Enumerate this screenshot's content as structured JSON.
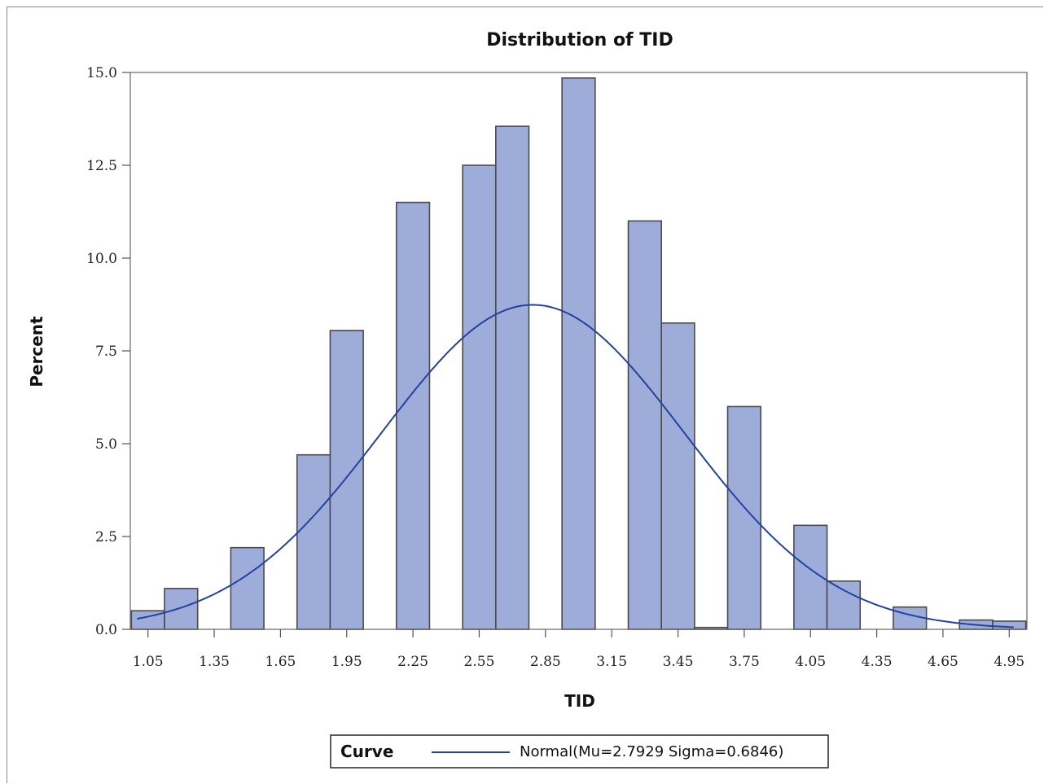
{
  "chart_data": {
    "type": "bar",
    "title": "Distribution of TID",
    "xlabel": "TID",
    "ylabel": "Percent",
    "xlim": [
      0.97,
      5.03
    ],
    "ylim": [
      0,
      15.0
    ],
    "bin_width": 0.15,
    "x_ticks": [
      "1.05",
      "1.35",
      "1.65",
      "1.95",
      "2.25",
      "2.55",
      "2.85",
      "3.15",
      "3.45",
      "3.75",
      "4.05",
      "4.35",
      "4.65",
      "4.95"
    ],
    "y_ticks": [
      "0.0",
      "2.5",
      "5.0",
      "7.5",
      "10.0",
      "12.5",
      "15.0"
    ],
    "bins": [
      {
        "x": 1.05,
        "value": 0.5
      },
      {
        "x": 1.2,
        "value": 1.1
      },
      {
        "x": 1.35,
        "value": 0.0
      },
      {
        "x": 1.5,
        "value": 2.2
      },
      {
        "x": 1.65,
        "value": 0.0
      },
      {
        "x": 1.8,
        "value": 4.7
      },
      {
        "x": 1.95,
        "value": 8.05
      },
      {
        "x": 2.1,
        "value": 0.0
      },
      {
        "x": 2.25,
        "value": 11.5
      },
      {
        "x": 2.4,
        "value": 0.0
      },
      {
        "x": 2.55,
        "value": 12.5
      },
      {
        "x": 2.7,
        "value": 13.55
      },
      {
        "x": 2.85,
        "value": 0.0
      },
      {
        "x": 3.0,
        "value": 14.85
      },
      {
        "x": 3.15,
        "value": 0.0
      },
      {
        "x": 3.3,
        "value": 11.0
      },
      {
        "x": 3.45,
        "value": 8.25
      },
      {
        "x": 3.6,
        "value": 0.05
      },
      {
        "x": 3.75,
        "value": 6.0
      },
      {
        "x": 3.9,
        "value": 0.0
      },
      {
        "x": 4.05,
        "value": 2.8
      },
      {
        "x": 4.2,
        "value": 1.3
      },
      {
        "x": 4.35,
        "value": 0.0
      },
      {
        "x": 4.5,
        "value": 0.6
      },
      {
        "x": 4.65,
        "value": 0.0
      },
      {
        "x": 4.8,
        "value": 0.25
      },
      {
        "x": 4.95,
        "value": 0.22
      }
    ],
    "curve": {
      "type": "normal",
      "mu": 2.7929,
      "sigma": 0.6846
    },
    "legend": {
      "title": "Curve",
      "entry": "Normal(Mu=2.7929 Sigma=0.6846)",
      "position": "bottom"
    },
    "colors": {
      "bar_fill": "#9eacd9",
      "bar_stroke": "#4a4a4a",
      "curve": "#2343a0",
      "axis": "#555555"
    },
    "grid": false
  }
}
